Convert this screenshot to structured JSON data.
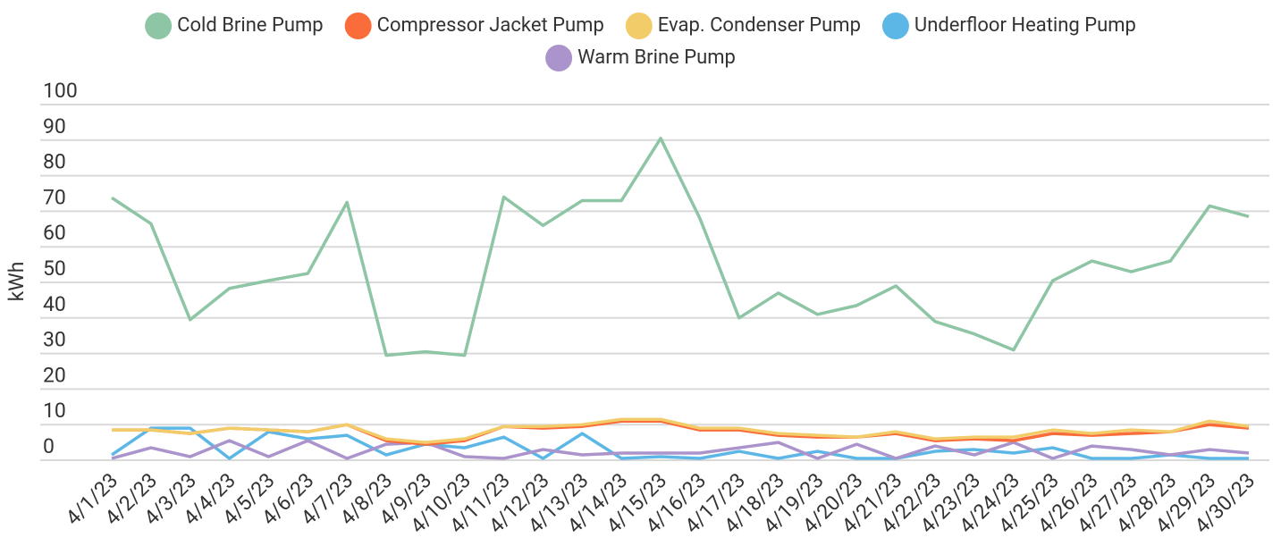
{
  "chart_data": {
    "type": "line",
    "y_label": "kWh",
    "x": [
      "4/1/23",
      "4/2/23",
      "4/3/23",
      "4/4/23",
      "4/5/23",
      "4/6/23",
      "4/7/23",
      "4/8/23",
      "4/9/23",
      "4/10/23",
      "4/11/23",
      "4/12/23",
      "4/13/23",
      "4/14/23",
      "4/15/23",
      "4/16/23",
      "4/17/23",
      "4/18/23",
      "4/19/23",
      "4/20/23",
      "4/21/23",
      "4/22/23",
      "4/23/23",
      "4/24/23",
      "4/25/23",
      "4/26/23",
      "4/27/23",
      "4/28/23",
      "4/29/23",
      "4/30/23"
    ],
    "series": [
      {
        "name": "Cold Brine Pump",
        "color": "#8dc5a5",
        "values": [
          73.8,
          66.5,
          39.5,
          48.3,
          50.5,
          52.5,
          72.5,
          29.5,
          30.5,
          29.5,
          74,
          66,
          73,
          73,
          90.5,
          68,
          40,
          47,
          41,
          43.5,
          49,
          39,
          35.5,
          31,
          50.5,
          56,
          53,
          56,
          71.5,
          68.5
        ]
      },
      {
        "name": "Compressor Jacket Pump",
        "color": "#fa6c3a",
        "values": [
          8.5,
          8.5,
          7.5,
          9,
          8.5,
          8,
          10,
          5.5,
          4.5,
          5.5,
          9.5,
          9,
          9.5,
          11,
          11,
          8.5,
          8.5,
          7,
          6.5,
          6.5,
          7.5,
          5.5,
          6,
          5.5,
          7.5,
          7,
          7.5,
          8,
          10,
          9
        ]
      },
      {
        "name": "Evap. Condenser Pump",
        "color": "#f3cc6a",
        "values": [
          8.5,
          8.5,
          7.5,
          9,
          8.5,
          8,
          10,
          6,
          5,
          6,
          9.5,
          9.5,
          10,
          11.5,
          11.5,
          9,
          9,
          7.5,
          7,
          6.5,
          8,
          6,
          6.5,
          6.5,
          8.5,
          7.5,
          8.5,
          8,
          11,
          9.5
        ]
      },
      {
        "name": "Underfloor Heating Pump",
        "color": "#5db7e6",
        "values": [
          1.5,
          9,
          9,
          0.5,
          8,
          6,
          7,
          1.5,
          4.5,
          3.5,
          6.5,
          0.5,
          7.5,
          0.5,
          1,
          0.5,
          2.5,
          0.5,
          2.5,
          0.5,
          0.5,
          2.5,
          3,
          2,
          3.5,
          0.5,
          0.5,
          1.5,
          0.5,
          0.5
        ]
      },
      {
        "name": "Warm Brine Pump",
        "color": "#ab93cb",
        "values": [
          0.5,
          3.5,
          1,
          5.5,
          1,
          5.5,
          0.5,
          4.5,
          5,
          1,
          0.5,
          3,
          1.5,
          2,
          2,
          2,
          3.5,
          5,
          0.5,
          4.5,
          0.5,
          4,
          1.5,
          5,
          0.5,
          4,
          3,
          1.5,
          3,
          2
        ]
      }
    ],
    "ylim": [
      0,
      100
    ],
    "yticks": [
      0,
      10,
      20,
      30,
      40,
      50,
      60,
      70,
      80,
      90,
      100
    ],
    "grid": true,
    "legend": "top"
  }
}
